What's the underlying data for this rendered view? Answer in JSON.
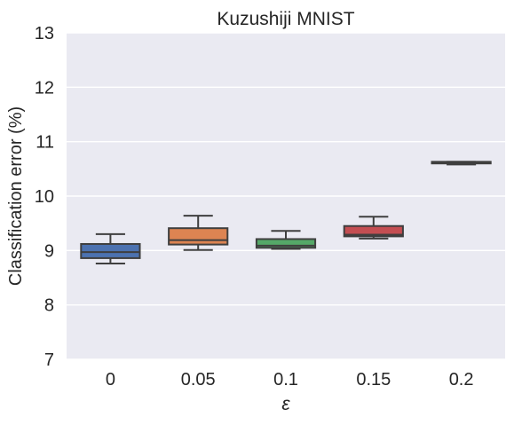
{
  "chart_data": {
    "type": "box",
    "title": "Kuzushiji MNIST",
    "xlabel": "ε",
    "ylabel": "Classification error (%)",
    "ylim": [
      7,
      13
    ],
    "yticks": [
      "7",
      "8",
      "9",
      "10",
      "11",
      "12",
      "13"
    ],
    "categories": [
      "0",
      "0.05",
      "0.1",
      "0.15",
      "0.2"
    ],
    "boxes": [
      {
        "category": "0",
        "whisker_low": 8.76,
        "q1": 8.86,
        "median": 8.97,
        "q3": 9.12,
        "whisker_high": 9.3,
        "color": "#4c72b0"
      },
      {
        "category": "0.05",
        "whisker_low": 9.01,
        "q1": 9.11,
        "median": 9.19,
        "q3": 9.41,
        "whisker_high": 9.64,
        "color": "#dd8452"
      },
      {
        "category": "0.1",
        "whisker_low": 9.03,
        "q1": 9.05,
        "median": 9.09,
        "q3": 9.21,
        "whisker_high": 9.36,
        "color": "#55a868"
      },
      {
        "category": "0.15",
        "whisker_low": 9.22,
        "q1": 9.26,
        "median": 9.29,
        "q3": 9.45,
        "whisker_high": 9.62,
        "color": "#c44e52"
      },
      {
        "category": "0.2",
        "whisker_low": 10.58,
        "q1": 10.6,
        "median": 10.62,
        "q3": 10.63,
        "whisker_high": 10.63,
        "color": "#8172b3"
      }
    ],
    "grid": true,
    "background": "#eaeaf2"
  }
}
